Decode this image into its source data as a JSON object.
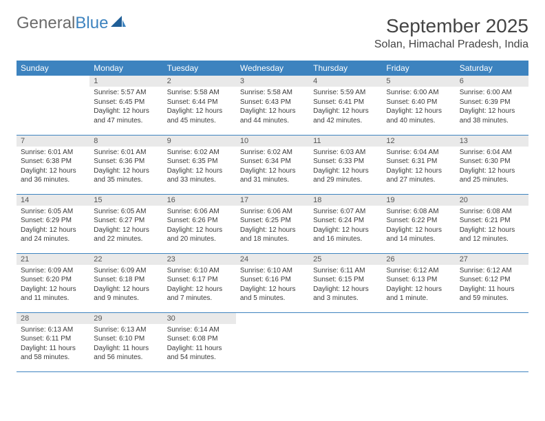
{
  "logo": {
    "part1": "General",
    "part2": "Blue"
  },
  "title": "September 2025",
  "subtitle": "Solan, Himachal Pradesh, India",
  "colors": {
    "header_bg": "#3d83bf",
    "header_text": "#ffffff",
    "daynum_bg": "#e9e9e9",
    "text": "#3a3a3a",
    "rule": "#3d83bf"
  },
  "weekdays": [
    "Sunday",
    "Monday",
    "Tuesday",
    "Wednesday",
    "Thursday",
    "Friday",
    "Saturday"
  ],
  "first_weekday_index": 1,
  "days": [
    {
      "n": 1,
      "sunrise": "5:57 AM",
      "sunset": "6:45 PM",
      "daylight": "12 hours and 47 minutes."
    },
    {
      "n": 2,
      "sunrise": "5:58 AM",
      "sunset": "6:44 PM",
      "daylight": "12 hours and 45 minutes."
    },
    {
      "n": 3,
      "sunrise": "5:58 AM",
      "sunset": "6:43 PM",
      "daylight": "12 hours and 44 minutes."
    },
    {
      "n": 4,
      "sunrise": "5:59 AM",
      "sunset": "6:41 PM",
      "daylight": "12 hours and 42 minutes."
    },
    {
      "n": 5,
      "sunrise": "6:00 AM",
      "sunset": "6:40 PM",
      "daylight": "12 hours and 40 minutes."
    },
    {
      "n": 6,
      "sunrise": "6:00 AM",
      "sunset": "6:39 PM",
      "daylight": "12 hours and 38 minutes."
    },
    {
      "n": 7,
      "sunrise": "6:01 AM",
      "sunset": "6:38 PM",
      "daylight": "12 hours and 36 minutes."
    },
    {
      "n": 8,
      "sunrise": "6:01 AM",
      "sunset": "6:36 PM",
      "daylight": "12 hours and 35 minutes."
    },
    {
      "n": 9,
      "sunrise": "6:02 AM",
      "sunset": "6:35 PM",
      "daylight": "12 hours and 33 minutes."
    },
    {
      "n": 10,
      "sunrise": "6:02 AM",
      "sunset": "6:34 PM",
      "daylight": "12 hours and 31 minutes."
    },
    {
      "n": 11,
      "sunrise": "6:03 AM",
      "sunset": "6:33 PM",
      "daylight": "12 hours and 29 minutes."
    },
    {
      "n": 12,
      "sunrise": "6:04 AM",
      "sunset": "6:31 PM",
      "daylight": "12 hours and 27 minutes."
    },
    {
      "n": 13,
      "sunrise": "6:04 AM",
      "sunset": "6:30 PM",
      "daylight": "12 hours and 25 minutes."
    },
    {
      "n": 14,
      "sunrise": "6:05 AM",
      "sunset": "6:29 PM",
      "daylight": "12 hours and 24 minutes."
    },
    {
      "n": 15,
      "sunrise": "6:05 AM",
      "sunset": "6:27 PM",
      "daylight": "12 hours and 22 minutes."
    },
    {
      "n": 16,
      "sunrise": "6:06 AM",
      "sunset": "6:26 PM",
      "daylight": "12 hours and 20 minutes."
    },
    {
      "n": 17,
      "sunrise": "6:06 AM",
      "sunset": "6:25 PM",
      "daylight": "12 hours and 18 minutes."
    },
    {
      "n": 18,
      "sunrise": "6:07 AM",
      "sunset": "6:24 PM",
      "daylight": "12 hours and 16 minutes."
    },
    {
      "n": 19,
      "sunrise": "6:08 AM",
      "sunset": "6:22 PM",
      "daylight": "12 hours and 14 minutes."
    },
    {
      "n": 20,
      "sunrise": "6:08 AM",
      "sunset": "6:21 PM",
      "daylight": "12 hours and 12 minutes."
    },
    {
      "n": 21,
      "sunrise": "6:09 AM",
      "sunset": "6:20 PM",
      "daylight": "12 hours and 11 minutes."
    },
    {
      "n": 22,
      "sunrise": "6:09 AM",
      "sunset": "6:18 PM",
      "daylight": "12 hours and 9 minutes."
    },
    {
      "n": 23,
      "sunrise": "6:10 AM",
      "sunset": "6:17 PM",
      "daylight": "12 hours and 7 minutes."
    },
    {
      "n": 24,
      "sunrise": "6:10 AM",
      "sunset": "6:16 PM",
      "daylight": "12 hours and 5 minutes."
    },
    {
      "n": 25,
      "sunrise": "6:11 AM",
      "sunset": "6:15 PM",
      "daylight": "12 hours and 3 minutes."
    },
    {
      "n": 26,
      "sunrise": "6:12 AM",
      "sunset": "6:13 PM",
      "daylight": "12 hours and 1 minute."
    },
    {
      "n": 27,
      "sunrise": "6:12 AM",
      "sunset": "6:12 PM",
      "daylight": "11 hours and 59 minutes."
    },
    {
      "n": 28,
      "sunrise": "6:13 AM",
      "sunset": "6:11 PM",
      "daylight": "11 hours and 58 minutes."
    },
    {
      "n": 29,
      "sunrise": "6:13 AM",
      "sunset": "6:10 PM",
      "daylight": "11 hours and 56 minutes."
    },
    {
      "n": 30,
      "sunrise": "6:14 AM",
      "sunset": "6:08 PM",
      "daylight": "11 hours and 54 minutes."
    }
  ],
  "labels": {
    "sunrise": "Sunrise:",
    "sunset": "Sunset:",
    "daylight": "Daylight:"
  }
}
